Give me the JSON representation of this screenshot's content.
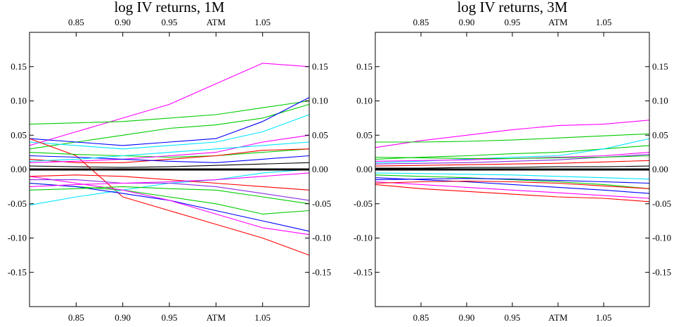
{
  "chart_data": [
    {
      "type": "line",
      "title": "log IV returns, 1M",
      "x_ticks": [
        {
          "x": 0.85,
          "label": "0.85"
        },
        {
          "x": 0.9,
          "label": "0.90"
        },
        {
          "x": 0.95,
          "label": "0.95"
        },
        {
          "x": 1.0,
          "label": "ATM"
        },
        {
          "x": 1.05,
          "label": "1.05"
        }
      ],
      "y_ticks": [
        {
          "y": 0.15,
          "label": "0.15"
        },
        {
          "y": 0.1,
          "label": "0.10"
        },
        {
          "y": 0.05,
          "label": "0.05"
        },
        {
          "y": 0.0,
          "label": "0.00"
        },
        {
          "y": -0.05,
          "label": "-0.05"
        },
        {
          "y": -0.1,
          "label": "-0.10"
        },
        {
          "y": -0.15,
          "label": "-0.15"
        }
      ],
      "xlim": [
        0.8,
        1.1
      ],
      "ylim": [
        -0.2,
        0.2
      ],
      "grid": false,
      "zero_line": true,
      "x": [
        0.8,
        0.85,
        0.9,
        0.95,
        1.0,
        1.05,
        1.1
      ],
      "series": [
        {
          "color": "#ff00ff",
          "values": [
            0.035,
            0.055,
            0.075,
            0.095,
            0.125,
            0.155,
            0.15
          ]
        },
        {
          "color": "#00cc00",
          "values": [
            0.066,
            0.068,
            0.07,
            0.075,
            0.08,
            0.09,
            0.1
          ]
        },
        {
          "color": "#00cc00",
          "values": [
            0.03,
            0.04,
            0.05,
            0.06,
            0.065,
            0.075,
            0.095
          ]
        },
        {
          "color": "#00e5ff",
          "values": [
            0.04,
            0.035,
            0.03,
            0.035,
            0.04,
            0.055,
            0.08
          ]
        },
        {
          "color": "#0000ff",
          "values": [
            0.045,
            0.04,
            0.035,
            0.04,
            0.045,
            0.07,
            0.105
          ]
        },
        {
          "color": "#ff0000",
          "values": [
            0.045,
            0.02,
            -0.04,
            -0.06,
            -0.08,
            -0.1,
            -0.125
          ]
        },
        {
          "color": "#00e5ff",
          "values": [
            -0.052,
            -0.04,
            -0.03,
            -0.02,
            -0.015,
            -0.005,
            0.0
          ]
        },
        {
          "color": "#00cc00",
          "values": [
            -0.02,
            -0.025,
            -0.03,
            -0.04,
            -0.05,
            -0.065,
            -0.06
          ]
        },
        {
          "color": "#0000ff",
          "values": [
            -0.02,
            -0.025,
            -0.035,
            -0.045,
            -0.06,
            -0.075,
            -0.09
          ]
        },
        {
          "color": "#ff00ff",
          "values": [
            -0.01,
            -0.02,
            -0.03,
            -0.045,
            -0.065,
            -0.085,
            -0.095
          ]
        },
        {
          "color": "#00cc00",
          "values": [
            0.025,
            0.022,
            0.02,
            0.018,
            0.02,
            0.025,
            0.03
          ]
        },
        {
          "color": "#ff0000",
          "values": [
            0.015,
            0.01,
            0.01,
            0.015,
            0.02,
            0.028,
            0.03
          ]
        },
        {
          "color": "#8a2be2",
          "values": [
            -0.015,
            -0.015,
            -0.02,
            -0.02,
            -0.025,
            -0.035,
            -0.045
          ]
        },
        {
          "color": "#ff00ff",
          "values": [
            0.01,
            0.012,
            0.015,
            0.02,
            0.025,
            0.04,
            0.05
          ]
        },
        {
          "color": "#000000",
          "values": [
            0.005,
            0.004,
            0.003,
            0.004,
            0.006,
            0.008,
            0.01
          ]
        },
        {
          "color": "#00cc00",
          "values": [
            -0.03,
            -0.028,
            -0.025,
            -0.028,
            -0.03,
            -0.04,
            -0.05
          ]
        },
        {
          "color": "#0000ff",
          "values": [
            0.02,
            0.018,
            0.015,
            0.012,
            0.01,
            0.015,
            0.02
          ]
        },
        {
          "color": "#ff0000",
          "values": [
            -0.01,
            -0.008,
            -0.01,
            -0.015,
            -0.02,
            -0.025,
            -0.03
          ]
        },
        {
          "color": "#00e5ff",
          "values": [
            0.012,
            0.015,
            0.02,
            0.025,
            0.03,
            0.035,
            0.04
          ]
        },
        {
          "color": "#ff00ff",
          "values": [
            -0.025,
            -0.022,
            -0.02,
            -0.018,
            -0.015,
            -0.01,
            -0.005
          ]
        }
      ]
    },
    {
      "type": "line",
      "title": "log IV returns, 3M",
      "x_ticks": [
        {
          "x": 0.85,
          "label": "0.85"
        },
        {
          "x": 0.9,
          "label": "0.90"
        },
        {
          "x": 0.95,
          "label": "0.95"
        },
        {
          "x": 1.0,
          "label": "ATM"
        },
        {
          "x": 1.05,
          "label": "1.05"
        }
      ],
      "y_ticks": [
        {
          "y": 0.15,
          "label": "0.15"
        },
        {
          "y": 0.1,
          "label": "0.10"
        },
        {
          "y": 0.05,
          "label": "0.05"
        },
        {
          "y": 0.0,
          "label": "0.00"
        },
        {
          "y": -0.05,
          "label": "-0.05"
        },
        {
          "y": -0.1,
          "label": "-0.10"
        },
        {
          "y": -0.15,
          "label": "-0.15"
        }
      ],
      "xlim": [
        0.8,
        1.1
      ],
      "ylim": [
        -0.2,
        0.2
      ],
      "grid": false,
      "zero_line": true,
      "x": [
        0.8,
        0.85,
        0.9,
        0.95,
        1.0,
        1.05,
        1.1
      ],
      "series": [
        {
          "color": "#ff00ff",
          "values": [
            0.032,
            0.042,
            0.05,
            0.058,
            0.064,
            0.066,
            0.072
          ]
        },
        {
          "color": "#00cc00",
          "values": [
            0.04,
            0.04,
            0.041,
            0.043,
            0.046,
            0.049,
            0.052
          ]
        },
        {
          "color": "#00cc00",
          "values": [
            0.015,
            0.018,
            0.02,
            0.023,
            0.025,
            0.03,
            0.035
          ]
        },
        {
          "color": "#00e5ff",
          "values": [
            0.01,
            0.012,
            0.015,
            0.018,
            0.02,
            0.03,
            0.045
          ]
        },
        {
          "color": "#ff0000",
          "values": [
            -0.022,
            -0.028,
            -0.032,
            -0.036,
            -0.04,
            -0.042,
            -0.047
          ]
        },
        {
          "color": "#ff00ff",
          "values": [
            -0.018,
            -0.022,
            -0.026,
            -0.03,
            -0.034,
            -0.038,
            -0.042
          ]
        },
        {
          "color": "#0000ff",
          "values": [
            -0.012,
            -0.015,
            -0.018,
            -0.022,
            -0.026,
            -0.03,
            -0.035
          ]
        },
        {
          "color": "#00cc00",
          "values": [
            -0.008,
            -0.01,
            -0.012,
            -0.015,
            -0.018,
            -0.022,
            -0.028
          ]
        },
        {
          "color": "#8a2be2",
          "values": [
            0.008,
            0.009,
            0.01,
            0.012,
            0.014,
            0.018,
            0.022
          ]
        },
        {
          "color": "#ff0000",
          "values": [
            0.005,
            0.006,
            0.007,
            0.008,
            0.009,
            0.011,
            0.013
          ]
        },
        {
          "color": "#000000",
          "values": [
            0.002,
            0.002,
            0.003,
            0.003,
            0.004,
            0.004,
            0.005
          ]
        },
        {
          "color": "#00e5ff",
          "values": [
            -0.005,
            -0.006,
            -0.007,
            -0.008,
            -0.01,
            -0.012,
            -0.014
          ]
        },
        {
          "color": "#ff00ff",
          "values": [
            0.012,
            0.013,
            0.014,
            0.016,
            0.018,
            0.02,
            0.025
          ]
        },
        {
          "color": "#0000ff",
          "values": [
            -0.015,
            -0.014,
            -0.013,
            -0.014,
            -0.016,
            -0.018,
            -0.02
          ]
        },
        {
          "color": "#00cc00",
          "values": [
            0.018,
            0.017,
            0.016,
            0.016,
            0.017,
            0.018,
            0.02
          ]
        },
        {
          "color": "#ff0000",
          "values": [
            -0.02,
            -0.018,
            -0.017,
            -0.018,
            -0.02,
            -0.024,
            -0.028
          ]
        }
      ]
    }
  ]
}
